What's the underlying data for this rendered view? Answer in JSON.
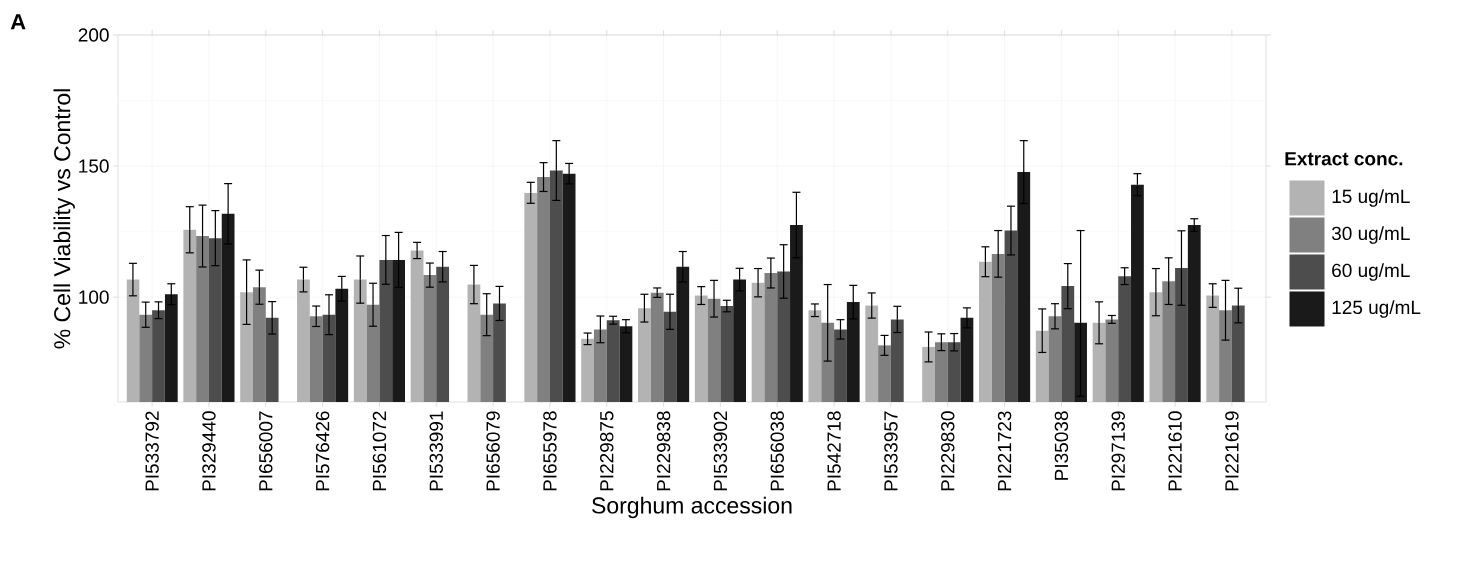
{
  "chart_data": {
    "type": "bar",
    "xlabel": "Sorghum accession",
    "ylabel": "% Cell Viability vs Control",
    "legend_title": "Extract conc.",
    "annotations": [
      "A"
    ],
    "categories": [
      "PI533792",
      "PI329440",
      "PI656007",
      "PI576426",
      "PI561072",
      "PI533991",
      "PI656079",
      "PI655978",
      "PI229875",
      "PI229838",
      "PI533902",
      "PI656038",
      "PI542718",
      "PI533957",
      "PI229830",
      "PI221723",
      "PI35038",
      "PI297139",
      "PI221610",
      "PI221619"
    ],
    "series": [
      {
        "name": "15 ug/mL",
        "color": "#b3b3b3",
        "values": [
          106.7,
          125.7,
          101.9,
          106.7,
          106.7,
          117.8,
          104.8,
          139.8,
          84.1,
          95.8,
          100.6,
          105.5,
          95.0,
          96.8,
          81.0,
          113.5,
          87.2,
          90.2,
          101.9,
          100.6
        ],
        "errors": [
          6.2,
          8.8,
          12.3,
          4.7,
          9.0,
          3.1,
          7.3,
          4.0,
          2.2,
          5.3,
          3.4,
          5.4,
          2.4,
          4.8,
          5.7,
          5.7,
          8.3,
          8.0,
          9.0,
          4.5
        ]
      },
      {
        "name": "30 ug/mL",
        "color": "#808080",
        "values": [
          93.3,
          123.3,
          103.8,
          92.7,
          97.1,
          108.4,
          93.3,
          145.8,
          87.7,
          101.7,
          99.4,
          109.2,
          90.2,
          81.6,
          82.8,
          116.5,
          92.7,
          91.5,
          106.1,
          95.0
        ],
        "errors": [
          4.8,
          11.8,
          6.5,
          3.9,
          8.2,
          4.6,
          8.0,
          5.5,
          5.1,
          1.8,
          7.0,
          5.7,
          14.6,
          3.8,
          3.2,
          8.9,
          4.8,
          1.5,
          8.9,
          11.4
        ]
      },
      {
        "name": "60 ug/mL",
        "color": "#4d4d4d",
        "values": [
          95.0,
          122.5,
          92.1,
          93.3,
          114.2,
          111.6,
          97.6,
          148.3,
          91.2,
          94.4,
          96.6,
          109.8,
          87.7,
          91.5,
          82.8,
          125.4,
          104.2,
          108.0,
          111.1,
          96.8
        ],
        "errors": [
          3.2,
          10.5,
          6.2,
          7.6,
          9.3,
          5.8,
          6.5,
          11.4,
          1.5,
          6.7,
          2.2,
          10.2,
          3.7,
          5.0,
          3.3,
          9.3,
          8.6,
          3.2,
          14.2,
          6.6
        ]
      },
      {
        "name": "125 ug/mL",
        "color": "#1a1a1a",
        "values": [
          101.1,
          131.8,
          null,
          103.2,
          114.2,
          null,
          null,
          147.1,
          88.9,
          111.6,
          106.7,
          127.5,
          98.1,
          null,
          92.1,
          147.7,
          90.2,
          142.9,
          127.5,
          null
        ],
        "errors": [
          4.0,
          11.5,
          null,
          4.7,
          10.5,
          null,
          null,
          3.9,
          2.5,
          5.8,
          4.3,
          12.5,
          6.4,
          null,
          3.8,
          12.0,
          [
            62.2,
            125.4
          ],
          4.2,
          2.4,
          null
        ]
      }
    ],
    "ylim": [
      60,
      200
    ],
    "yticks": [
      100,
      150,
      200
    ],
    "grid": true,
    "legend": "right"
  }
}
